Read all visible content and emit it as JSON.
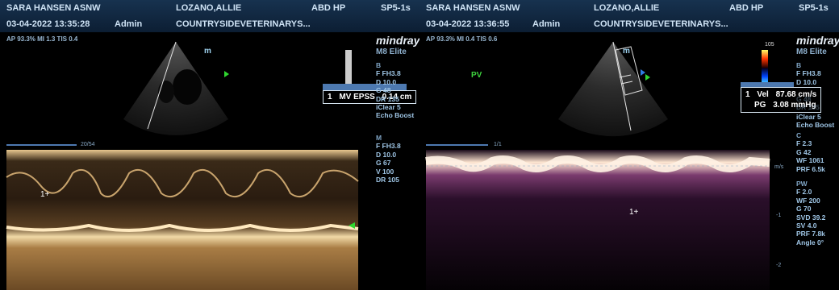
{
  "left": {
    "header": {
      "site": "SARA HANSEN ASNW",
      "patient": "LOZANO,ALLIE",
      "preset": "ABD HP",
      "probe": "SP5-1s",
      "datetime": "03-04-2022 13:35:28",
      "user": "Admin",
      "clinic": "COUNTRYSIDEVETERINARYS..."
    },
    "ap_line": "AP 93.3% MI 1.3 TIS 0.4",
    "brand": "mindray",
    "model": "M8 Elite",
    "b_params": [
      "B",
      "F FH3.8",
      "D 10.0",
      "G 48",
      "DR 135",
      "iClear 5",
      "Echo Boost"
    ],
    "m_params": [
      "M",
      "F FH3.8",
      "D 10.0",
      "G 67",
      "V 100",
      "DR 105"
    ],
    "measurement": {
      "index": "1",
      "label": "MV EPSS",
      "value": "0.14 cm"
    },
    "depth_marker": "20/54",
    "cursor": "1+",
    "mode_label": "m"
  },
  "right": {
    "header": {
      "site": "SARA HANSEN ASNW",
      "patient": "LOZANO,ALLIE",
      "preset": "ABD HP",
      "probe": "SP5-1s",
      "datetime": "03-04-2022 13:36:55",
      "user": "Admin",
      "clinic": "COUNTRYSIDEVETERINARYS..."
    },
    "ap_line": "AP 93.3% MI 0.4 TIS 0.6",
    "pv_label": "PV",
    "brand": "mindray",
    "model": "M8 Elite",
    "color_scale_top": "105",
    "b_params": [
      "B",
      "F FH3.8",
      "D 10.0"
    ],
    "b_params_hidden": [
      "G 48",
      "DR 135"
    ],
    "b_params2": [
      "iClear 5",
      "Echo Boost"
    ],
    "c_params": [
      "C",
      "F 2.3",
      "G 42",
      "WF 1061",
      "PRF 6.5k"
    ],
    "pw_params": [
      "PW",
      "F 2.0",
      "WF 200",
      "G 70",
      "SVD 39.2",
      "SV 4.0",
      "PRF 7.8k",
      "Angle 0°"
    ],
    "measurement": {
      "index": "1",
      "vel_label": "Vel",
      "vel_value": "87.68 cm/s",
      "pg_label": "PG",
      "pg_value": "3.08 mmHg"
    },
    "depth_marker": "1/1",
    "scale_unit": "m/s",
    "scale_ticks": [
      "-1",
      "-2"
    ],
    "cursor": "1+",
    "mode_label": "m"
  }
}
